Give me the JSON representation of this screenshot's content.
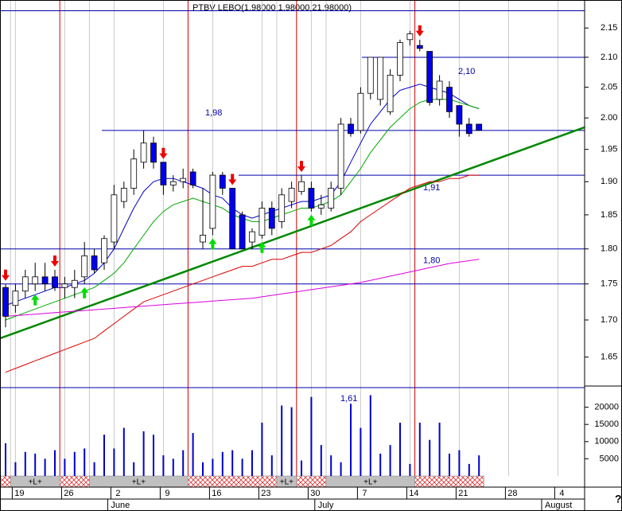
{
  "chart_data": {
    "type": "candlestick",
    "title": "PTBV LEBO(1.98000,1.98000,21.98000)",
    "help": "?",
    "categories": [
      null,
      "19",
      null,
      null,
      null,
      null,
      "26",
      null,
      null,
      null,
      null,
      "2",
      null,
      null,
      null,
      null,
      "9",
      null,
      null,
      null,
      null,
      "16",
      null,
      null,
      null,
      null,
      "23",
      null,
      null,
      null,
      null,
      "30",
      null,
      null,
      null,
      null,
      "7",
      null,
      null,
      null,
      null,
      "14",
      null,
      null,
      null,
      null,
      "21",
      null,
      null,
      null,
      null,
      "28",
      null,
      null,
      null,
      null,
      "4",
      null,
      null
    ],
    "months": [
      null,
      null,
      null,
      null,
      null,
      null,
      null,
      null,
      null,
      null,
      null,
      "June",
      null,
      null,
      null,
      null,
      null,
      null,
      null,
      null,
      null,
      null,
      null,
      null,
      null,
      null,
      null,
      null,
      null,
      null,
      null,
      null,
      "July",
      null,
      null,
      null,
      null,
      null,
      null,
      null,
      null,
      null,
      null,
      null,
      null,
      null,
      null,
      null,
      null,
      null,
      null,
      null,
      null,
      null,
      null,
      "August",
      null,
      null,
      null
    ],
    "log": true,
    "ylim": [
      1.612,
      2.199
    ],
    "yticks": [
      1.65,
      {
        "value": 1.7,
        "label": "1.70"
      },
      1.75,
      {
        "value": 1.8,
        "label": "1.80"
      },
      1.85,
      {
        "value": 1.9,
        "label": "1.90"
      },
      1.95,
      {
        "value": 2.0,
        "label": "2.00"
      },
      2.05,
      {
        "value": 2.1,
        "label": "2.10"
      },
      2.15
    ],
    "up_color": "#ffffff",
    "down_color": "#0000ee",
    "open": [
      1.745,
      1.72,
      1.74,
      1.75,
      1.76,
      1.76,
      1.745,
      1.745,
      1.76,
      1.79,
      1.78,
      1.81,
      1.87,
      1.89,
      1.93,
      1.96,
      1.93,
      1.895,
      1.9,
      1.915,
      1.81,
      1.83,
      1.91,
      1.89,
      1.85,
      1.81,
      1.82,
      1.86,
      1.84,
      1.87,
      1.885,
      1.89,
      1.86,
      1.86,
      1.89,
      1.99,
      1.98,
      2.04,
      2.03,
      2.01,
      2.07,
      2.13,
      2.12,
      2.11,
      2.03,
      2.05,
      2.02,
      1.99,
      1.99,
      null,
      null,
      null,
      null,
      null,
      null,
      null,
      null,
      null,
      null
    ],
    "high": [
      1.75,
      1.75,
      1.77,
      1.78,
      1.78,
      1.77,
      1.76,
      1.77,
      1.81,
      1.8,
      1.82,
      1.895,
      1.9,
      1.95,
      1.98,
      1.97,
      1.93,
      1.91,
      1.92,
      1.92,
      1.89,
      1.915,
      1.915,
      1.89,
      1.855,
      1.83,
      1.87,
      1.87,
      1.89,
      1.9,
      1.91,
      1.9,
      1.88,
      1.9,
      2.0,
      2.0,
      2.05,
      2.1,
      2.1,
      2.08,
      2.13,
      2.145,
      2.13,
      2.11,
      2.07,
      2.06,
      2.02,
      2.0,
      1.99,
      null,
      null,
      null,
      null,
      null,
      null,
      null,
      null,
      null,
      null
    ],
    "low": [
      1.69,
      1.71,
      1.73,
      1.74,
      1.74,
      1.74,
      1.73,
      1.73,
      1.75,
      1.765,
      1.77,
      1.8,
      1.86,
      1.88,
      1.92,
      1.92,
      1.88,
      1.885,
      1.89,
      1.89,
      1.8,
      1.82,
      1.88,
      1.8,
      1.8,
      1.8,
      1.815,
      1.82,
      1.83,
      1.86,
      1.88,
      1.855,
      1.85,
      1.855,
      1.88,
      1.97,
      1.975,
      2.03,
      2.02,
      2.005,
      2.06,
      2.12,
      2.11,
      2.02,
      2.02,
      2.0,
      1.97,
      1.97,
      1.98,
      null,
      null,
      null,
      null,
      null,
      null,
      null,
      null,
      null,
      null
    ],
    "close": [
      1.705,
      1.74,
      1.76,
      1.76,
      1.75,
      1.745,
      1.75,
      1.755,
      1.79,
      1.77,
      1.815,
      1.88,
      1.89,
      1.935,
      1.96,
      1.93,
      1.895,
      1.9,
      1.905,
      1.895,
      1.82,
      1.91,
      1.89,
      1.8,
      1.8,
      1.825,
      1.86,
      1.83,
      1.88,
      1.89,
      1.9,
      1.86,
      1.865,
      1.89,
      1.99,
      1.975,
      2.04,
      2.1,
      2.1,
      2.07,
      2.125,
      2.14,
      2.115,
      2.025,
      2.06,
      2.01,
      1.99,
      1.975,
      1.98,
      null,
      null,
      null,
      null,
      null,
      null,
      null,
      null,
      null,
      null
    ],
    "ma_lines": [
      {
        "color": "#0000cc",
        "values": [
          1.72,
          1.725,
          1.73,
          1.735,
          1.74,
          1.745,
          1.745,
          1.75,
          1.755,
          1.765,
          1.78,
          1.8,
          1.83,
          1.86,
          1.885,
          1.9,
          1.905,
          1.905,
          1.9,
          1.895,
          1.89,
          1.88,
          1.875,
          1.86,
          1.85,
          1.845,
          1.85,
          1.855,
          1.86,
          1.865,
          1.87,
          1.87,
          1.875,
          1.88,
          1.9,
          1.93,
          1.96,
          1.99,
          2.01,
          2.03,
          2.045,
          2.05,
          2.055,
          2.05,
          2.045,
          2.04,
          2.03,
          2.02,
          2.015,
          null,
          null,
          null,
          null,
          null,
          null,
          null,
          null,
          null,
          null
        ]
      },
      {
        "color": "#00aa00",
        "values": [
          1.7,
          1.705,
          1.71,
          1.715,
          1.72,
          1.725,
          1.73,
          1.735,
          1.74,
          1.745,
          1.755,
          1.765,
          1.78,
          1.8,
          1.82,
          1.84,
          1.855,
          1.865,
          1.87,
          1.875,
          1.87,
          1.865,
          1.86,
          1.85,
          1.845,
          1.84,
          1.84,
          1.845,
          1.85,
          1.855,
          1.86,
          1.86,
          1.865,
          1.87,
          1.88,
          1.9,
          1.92,
          1.945,
          1.965,
          1.985,
          2.0,
          2.015,
          2.025,
          2.03,
          2.03,
          2.03,
          2.025,
          2.02,
          2.015,
          null,
          null,
          null,
          null,
          null,
          null,
          null,
          null,
          null,
          null
        ]
      },
      {
        "color": "#dd0000",
        "values": [
          1.63,
          1.635,
          1.64,
          1.645,
          1.65,
          1.655,
          1.66,
          1.665,
          1.67,
          1.675,
          1.685,
          1.695,
          1.705,
          1.715,
          1.725,
          1.73,
          1.735,
          1.74,
          1.745,
          1.75,
          1.755,
          1.76,
          1.765,
          1.77,
          1.775,
          1.775,
          1.78,
          1.785,
          1.785,
          1.79,
          1.795,
          1.795,
          1.8,
          1.805,
          1.815,
          1.825,
          1.84,
          1.85,
          1.86,
          1.87,
          1.88,
          1.89,
          1.895,
          1.9,
          1.9,
          1.905,
          1.905,
          1.91,
          1.91,
          null,
          null,
          null,
          null,
          null,
          null,
          null,
          null,
          null,
          null
        ]
      },
      {
        "color": "#dd00dd",
        "values": [
          1.705,
          1.706,
          1.707,
          1.708,
          1.709,
          1.71,
          1.711,
          1.712,
          1.713,
          1.714,
          1.715,
          1.716,
          1.717,
          1.718,
          1.719,
          1.72,
          1.721,
          1.722,
          1.723,
          1.724,
          1.725,
          1.726,
          1.727,
          1.728,
          1.729,
          1.73,
          1.732,
          1.734,
          1.736,
          1.738,
          1.74,
          1.742,
          1.744,
          1.746,
          1.748,
          1.75,
          1.752,
          1.755,
          1.758,
          1.761,
          1.764,
          1.767,
          1.77,
          1.773,
          1.776,
          1.779,
          1.781,
          1.783,
          1.785,
          null,
          null,
          null,
          null,
          null,
          null,
          null,
          null,
          null,
          null
        ]
      }
    ],
    "trendline": {
      "color": "#008800",
      "start": 1.675,
      "end": 1.985
    },
    "levels": [
      2.18,
      {
        "value": 2.1,
        "label": "2,10"
      },
      {
        "value": 1.98,
        "label": "1,98"
      },
      {
        "value": 1.91,
        "label": "1,91"
      },
      {
        "value": 1.8,
        "label": "1,80"
      },
      1.75,
      {
        "value": 1.61,
        "label": "1,61"
      }
    ],
    "level_color": "#0000aa",
    "signals": [
      "sell",
      null,
      null,
      "buy",
      null,
      "sell",
      null,
      null,
      "buy",
      null,
      null,
      null,
      null,
      null,
      null,
      null,
      "sell",
      null,
      null,
      null,
      null,
      "buy",
      null,
      "sell",
      null,
      null,
      "buy",
      null,
      null,
      null,
      "sell",
      "buy",
      null,
      null,
      null,
      null,
      null,
      null,
      null,
      null,
      null,
      null,
      "sell",
      null,
      null,
      null,
      null,
      null,
      null,
      null,
      null,
      null,
      null,
      null,
      null,
      null,
      null,
      null,
      null
    ],
    "long_label": "+L+",
    "long_signal": [
      false,
      true,
      true,
      true,
      true,
      true,
      false,
      false,
      false,
      true,
      true,
      true,
      true,
      true,
      true,
      true,
      true,
      true,
      true,
      false,
      false,
      false,
      false,
      false,
      false,
      false,
      false,
      false,
      true,
      true,
      false,
      false,
      false,
      true,
      true,
      true,
      true,
      true,
      true,
      true,
      true,
      true,
      false,
      false,
      false,
      false,
      false,
      false,
      false,
      null,
      null,
      null,
      null,
      null,
      null,
      null,
      null,
      null,
      null
    ],
    "volume": {
      "color": "#0000cc",
      "ylim": [
        0,
        25000
      ],
      "yticks": [
        5000,
        10000,
        15000,
        20000
      ],
      "values": [
        9500,
        4000,
        7000,
        6500,
        5000,
        7500,
        5000,
        7000,
        8000,
        4000,
        12000,
        8000,
        14000,
        4000,
        13000,
        12000,
        6000,
        5000,
        7500,
        12500,
        4000,
        5000,
        7000,
        7500,
        5000,
        7500,
        15500,
        6000,
        20500,
        20000,
        4500,
        23000,
        9000,
        6000,
        4000,
        21000,
        14000,
        23500,
        6500,
        9000,
        15500,
        3500,
        15500,
        10500,
        15500,
        6500,
        7500,
        3500,
        6000,
        null,
        null,
        null,
        null,
        null,
        null,
        null,
        null,
        null,
        null
      ]
    }
  }
}
